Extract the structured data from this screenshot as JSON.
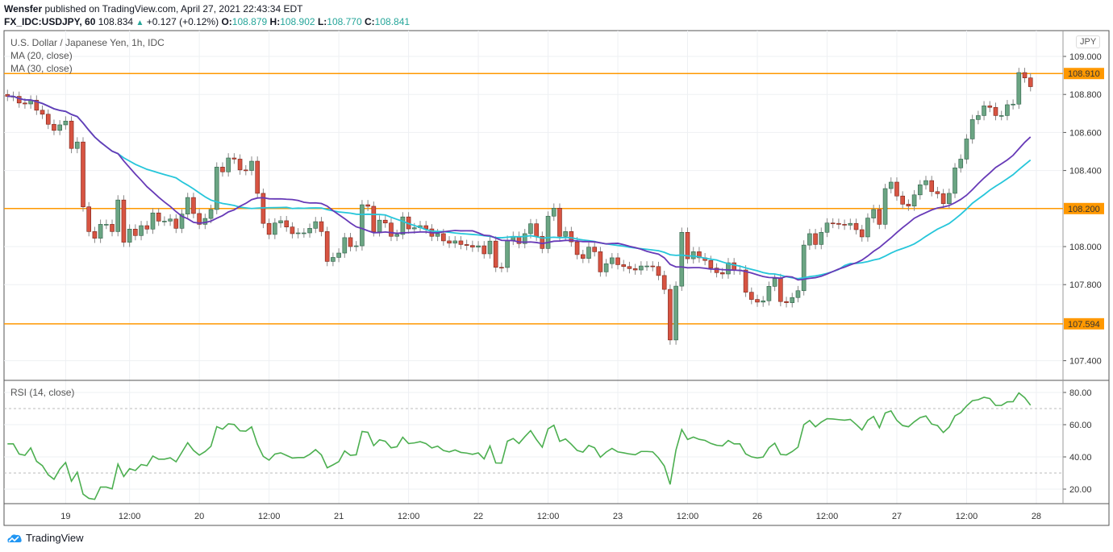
{
  "header": {
    "author": "Wensfer",
    "published": "published on TradingView.com, April 27, 2021 22:43:34 EDT",
    "symbol": "FX_IDC:USDJPY, 60",
    "last": "108.834",
    "change": "+0.127 (+0.12%)",
    "o_label": "O:",
    "o": "108.879",
    "h_label": "H:",
    "h": "108.902",
    "l_label": "L:",
    "l": "108.770",
    "c_label": "C:",
    "c": "108.841"
  },
  "legend": {
    "title": "U.S. Dollar / Japanese Yen, 1h, IDC",
    "ma20": "MA (20, close)",
    "ma30": "MA (30, close)",
    "rsi": "RSI (14, close)"
  },
  "currency_badge": "JPY",
  "footer": {
    "brand": "TradingView"
  },
  "colors": {
    "up": "#6ba583",
    "down": "#d75442",
    "level": "#ff9800",
    "ma20": "#673ab7",
    "ma30": "#26c6da",
    "rsi": "#4caf50"
  },
  "chart_data": {
    "type": "candlestick",
    "title": "U.S. Dollar / Japanese Yen, 1h, IDC",
    "ylim": [
      107.3,
      109.1
    ],
    "price_ticks": [
      "109.000",
      "108.800",
      "108.600",
      "108.400",
      "108.000",
      "107.800",
      "107.400"
    ],
    "levels": [
      {
        "value": 108.91,
        "label": "108.910"
      },
      {
        "value": 108.2,
        "label": "108.200"
      },
      {
        "value": 107.594,
        "label": "107.594"
      }
    ],
    "time_ticks": [
      {
        "label": "19",
        "bar": 11
      },
      {
        "label": "12:00",
        "bar": 22
      },
      {
        "label": "20",
        "bar": 34
      },
      {
        "label": "12:00",
        "bar": 46
      },
      {
        "label": "21",
        "bar": 58
      },
      {
        "label": "12:00",
        "bar": 70
      },
      {
        "label": "22",
        "bar": 82
      },
      {
        "label": "12:00",
        "bar": 94
      },
      {
        "label": "23",
        "bar": 106
      },
      {
        "label": "12:00",
        "bar": 118
      },
      {
        "label": "26",
        "bar": 130
      },
      {
        "label": "12:00",
        "bar": 142
      },
      {
        "label": "27",
        "bar": 154
      },
      {
        "label": "12:00",
        "bar": 166
      },
      {
        "label": "28",
        "bar": 178
      }
    ],
    "rsi_ticks": [
      "80.00",
      "60.00",
      "40.00",
      "20.00"
    ],
    "rsi_bands": [
      70,
      30
    ],
    "first_open": 108.8,
    "closes": [
      108.79,
      108.79,
      108.755,
      108.75,
      108.77,
      108.717,
      108.696,
      108.643,
      108.611,
      108.64,
      108.66,
      108.516,
      108.55,
      108.209,
      108.079,
      108.044,
      108.117,
      108.117,
      108.079,
      108.245,
      108.023,
      108.092,
      108.058,
      108.11,
      108.092,
      108.177,
      108.134,
      108.134,
      108.145,
      108.096,
      108.171,
      108.258,
      108.174,
      108.117,
      108.148,
      108.195,
      108.418,
      108.393,
      108.466,
      108.46,
      108.403,
      108.4,
      108.449,
      108.28,
      108.122,
      108.064,
      108.124,
      108.136,
      108.103,
      108.068,
      108.072,
      108.072,
      108.096,
      108.131,
      108.079,
      107.922,
      107.943,
      107.966,
      108.047,
      108.0,
      108.004,
      108.22,
      108.212,
      108.078,
      108.139,
      108.124,
      108.054,
      108.064,
      108.156,
      108.093,
      108.099,
      108.11,
      108.093,
      108.054,
      108.068,
      108.03,
      108.018,
      108.03,
      108.011,
      108.006,
      107.997,
      108.004,
      107.962,
      108.029,
      107.891,
      107.89,
      108.033,
      108.054,
      108.016,
      108.068,
      108.12,
      108.054,
      107.99,
      108.16,
      108.202,
      108.054,
      108.079,
      108.025,
      107.958,
      107.938,
      107.997,
      107.973,
      107.867,
      107.91,
      107.941,
      107.905,
      107.895,
      107.884,
      107.877,
      107.898,
      107.898,
      107.895,
      107.848,
      107.775,
      107.509,
      107.792,
      108.075,
      107.936,
      107.973,
      107.941,
      107.927,
      107.887,
      107.863,
      107.856,
      107.915,
      107.877,
      107.877,
      107.76,
      107.722,
      107.708,
      107.715,
      107.791,
      107.832,
      107.711,
      107.705,
      107.732,
      107.768,
      108.008,
      108.068,
      108.011,
      108.075,
      108.124,
      108.122,
      108.117,
      108.113,
      108.122,
      108.089,
      108.051,
      108.15,
      108.195,
      108.117,
      108.305,
      108.339,
      108.266,
      108.223,
      108.213,
      108.272,
      108.325,
      108.347,
      108.289,
      108.278,
      108.226,
      108.28,
      108.414,
      108.46,
      108.566,
      108.668,
      108.689,
      108.74,
      108.732,
      108.689,
      108.689,
      108.746,
      108.749,
      108.915,
      108.887,
      108.841
    ]
  }
}
